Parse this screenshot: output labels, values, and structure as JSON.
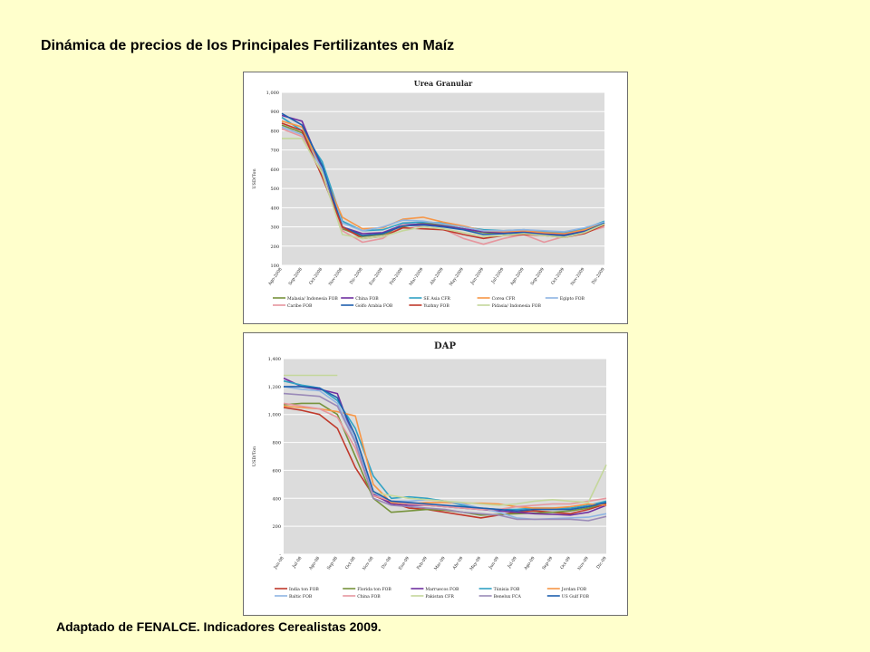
{
  "slide": {
    "title": "Dinámica de precios de los Principales Fertilizantes en Maíz",
    "caption": "Adaptado de FENALCE. Indicadores Cerealistas 2009."
  },
  "chart_data": [
    {
      "type": "line",
      "title": "Urea Granular",
      "ylabel": "USD/Ton",
      "xlabel": "",
      "ylim": [
        100,
        1000
      ],
      "yticks": [
        100,
        200,
        300,
        400,
        500,
        600,
        700,
        800,
        900,
        1000
      ],
      "ytick_labels": [
        "100",
        "200",
        "300",
        "400",
        "500",
        "600",
        "700",
        "800",
        "900",
        "1,000"
      ],
      "grid": true,
      "legend_position": "bottom",
      "categories": [
        "Ago-2008",
        "Sep-2008",
        "Oct-2008",
        "Nov-2008",
        "Dic-2008",
        "Ene-2009",
        "Feb-2009",
        "Mar-2009",
        "Abr-2009",
        "May-2009",
        "Jun-2009",
        "Jul-2009",
        "Ago-2009",
        "Sep-2009",
        "Oct-2009",
        "Nov-2009",
        "Dic-2009"
      ],
      "series": [
        {
          "name": "Malasia/ Indonesia FOB",
          "color": "#77933c",
          "values": [
            830,
            790,
            610,
            290,
            250,
            260,
            300,
            320,
            310,
            290,
            270,
            265,
            270,
            260,
            255,
            270,
            310
          ]
        },
        {
          "name": "China FOB",
          "color": "#7030a0",
          "values": [
            880,
            850,
            600,
            300,
            265,
            270,
            310,
            315,
            305,
            290,
            275,
            270,
            275,
            265,
            260,
            280,
            320
          ]
        },
        {
          "name": "SE Asia CFR",
          "color": "#31a2c4",
          "values": [
            870,
            800,
            640,
            330,
            280,
            285,
            320,
            325,
            320,
            300,
            285,
            280,
            285,
            275,
            270,
            290,
            330
          ]
        },
        {
          "name": "Corea CFR",
          "color": "#f79646",
          "values": [
            850,
            820,
            590,
            350,
            290,
            295,
            340,
            350,
            325,
            305,
            280,
            275,
            280,
            270,
            265,
            285,
            320
          ]
        },
        {
          "name": "Egipto FOB",
          "color": "#8eb4e3",
          "values": [
            820,
            780,
            600,
            320,
            280,
            300,
            335,
            330,
            315,
            300,
            280,
            280,
            285,
            280,
            275,
            295,
            325
          ]
        },
        {
          "name": "Caribe FOB",
          "color": "#e6969e",
          "values": [
            810,
            770,
            570,
            280,
            220,
            240,
            310,
            300,
            290,
            240,
            210,
            240,
            260,
            220,
            250,
            270,
            300
          ]
        },
        {
          "name": "Golfo Arabia FOB",
          "color": "#1f5fad",
          "values": [
            890,
            830,
            620,
            300,
            255,
            265,
            305,
            310,
            300,
            285,
            260,
            265,
            270,
            260,
            255,
            275,
            320
          ]
        },
        {
          "name": "Yuzhny FOB",
          "color": "#c0392b",
          "values": [
            840,
            800,
            560,
            300,
            240,
            250,
            295,
            290,
            285,
            260,
            240,
            255,
            260,
            255,
            245,
            265,
            310
          ]
        },
        {
          "name": "Pidasia/ Indonesia FOB",
          "color": "#c4d79b",
          "values": [
            760,
            760,
            580,
            260,
            240,
            250,
            280,
            300,
            290,
            270,
            250,
            255,
            265,
            255,
            245,
            270,
            315
          ]
        }
      ]
    },
    {
      "type": "line",
      "title": "DAP",
      "ylabel": "USD/Ton",
      "xlabel": "",
      "ylim": [
        0,
        1400
      ],
      "yticks": [
        0,
        200,
        400,
        600,
        800,
        1000,
        1200,
        1400
      ],
      "ytick_labels": [
        "-",
        "200",
        "400",
        "600",
        "800",
        "1,000",
        "1,200",
        "1,400"
      ],
      "grid": true,
      "legend_position": "bottom",
      "categories": [
        "Jun-08",
        "Jul-08",
        "Ago-08",
        "Sep-08",
        "Oct-08",
        "Nov-08",
        "Dic-08",
        "Ene-09",
        "Feb-09",
        "Mar-09",
        "Abr-09",
        "May-09",
        "Jun-09",
        "Jul-09",
        "Ago-09",
        "Sep-09",
        "Oct-09",
        "Nov-09",
        "Dic-09"
      ],
      "series": [
        {
          "name": "India ton FOB",
          "color": "#c0392b",
          "values": [
            1050,
            1030,
            1000,
            900,
            620,
            420,
            370,
            330,
            320,
            300,
            280,
            260,
            280,
            300,
            310,
            300,
            290,
            320,
            360
          ]
        },
        {
          "name": "Florida ton FOB",
          "color": "#77933c",
          "values": [
            1070,
            1080,
            1080,
            1000,
            700,
            400,
            300,
            310,
            320,
            315,
            300,
            280,
            285,
            290,
            295,
            300,
            310,
            330,
            370
          ]
        },
        {
          "name": "Marruecos FOB",
          "color": "#7030a0",
          "values": [
            1260,
            1200,
            1180,
            1150,
            800,
            430,
            360,
            350,
            350,
            340,
            330,
            320,
            310,
            300,
            290,
            285,
            280,
            300,
            350
          ]
        },
        {
          "name": "Túnisia FOB",
          "color": "#31a2c4",
          "values": [
            1240,
            1210,
            1190,
            1100,
            900,
            560,
            400,
            410,
            400,
            380,
            350,
            330,
            320,
            320,
            330,
            330,
            330,
            350,
            380
          ]
        },
        {
          "name": "Jordan FOB",
          "color": "#f79646",
          "values": [
            1060,
            1050,
            1040,
            1020,
            990,
            500,
            370,
            360,
            370,
            370,
            365,
            365,
            360,
            340,
            330,
            330,
            340,
            360,
            350
          ]
        },
        {
          "name": "Baltic FOB",
          "color": "#8eb4e3",
          "values": [
            1200,
            1180,
            1170,
            1080,
            820,
            440,
            380,
            380,
            390,
            380,
            360,
            330,
            300,
            260,
            250,
            255,
            260,
            265,
            290
          ]
        },
        {
          "name": "China FOB",
          "color": "#e6969e",
          "values": [
            1080,
            1060,
            1040,
            980,
            760,
            420,
            380,
            360,
            350,
            340,
            330,
            320,
            320,
            340,
            350,
            360,
            360,
            380,
            400
          ]
        },
        {
          "name": "Pakistan CFR",
          "color": "#c4d79b",
          "values": [
            1280,
            1280,
            1280,
            1280,
            null,
            440,
            420,
            400,
            390,
            380,
            370,
            360,
            350,
            360,
            380,
            390,
            380,
            370,
            640
          ]
        },
        {
          "name": "Benelux FCA",
          "color": "#9a8ab8",
          "values": [
            1150,
            1140,
            1130,
            1060,
            800,
            400,
            350,
            340,
            330,
            320,
            300,
            290,
            280,
            250,
            250,
            250,
            250,
            240,
            270
          ]
        },
        {
          "name": "US Gulf FOB",
          "color": "#1f5fad",
          "values": [
            1200,
            1200,
            1190,
            1120,
            850,
            450,
            380,
            370,
            360,
            350,
            340,
            330,
            320,
            310,
            320,
            320,
            320,
            340,
            370
          ]
        }
      ]
    }
  ]
}
